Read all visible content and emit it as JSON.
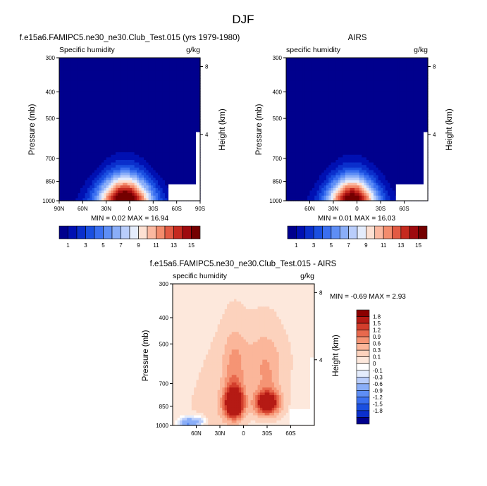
{
  "figure": {
    "title": "DJF"
  },
  "chart_data": [
    {
      "type": "heatmap",
      "panel": "model",
      "title": "f.e15a6.FAMIPC5.ne30_ne30.Club_Test.015 (yrs 1979-1980)",
      "left_subtitle": "Specific humidity",
      "right_subtitle": "g/kg",
      "ylabel": "Pressure (mb)",
      "ylabel_right": "Height (km)",
      "x_tick_labels": [
        "90N",
        "60N",
        "30N",
        "0",
        "30S",
        "60S",
        "90S"
      ],
      "x_ticks": [
        90,
        60,
        30,
        0,
        -30,
        -60,
        -90
      ],
      "xlim": [
        90,
        -90
      ],
      "y_tick_labels": [
        "300",
        "400",
        "500",
        "700",
        "850",
        "1000"
      ],
      "y_ticks": [
        300,
        400,
        500,
        700,
        850,
        1000
      ],
      "ylim": [
        300,
        1000
      ],
      "y_scale": "log",
      "height_ticks": [
        "8",
        "4"
      ],
      "min_max_text": "MIN =  0.02  MAX =  16.94",
      "min": 0.02,
      "max": 16.94,
      "colorbar": {
        "labels": [
          "1",
          "3",
          "5",
          "7",
          "9",
          "11",
          "13",
          "15"
        ],
        "levels": [
          1,
          2,
          3,
          4,
          5,
          6,
          7,
          8,
          9,
          10,
          11,
          12,
          13,
          14,
          15
        ],
        "colors": [
          "#00008d",
          "#0010b2",
          "#0a2fcc",
          "#1a4fe0",
          "#3a6ff0",
          "#5e8ef5",
          "#8aaef8",
          "#b9cdfb",
          "#e4ecfc",
          "#fde0d2",
          "#fbb8a0",
          "#f38c6d",
          "#e25a43",
          "#c52a1f",
          "#9e0a0e",
          "#740000"
        ]
      },
      "field": {
        "amplitude": 17,
        "center_lat": 6,
        "lat_width": 25,
        "scale_height_mb": 140
      }
    },
    {
      "type": "heatmap",
      "panel": "obs",
      "title": "AIRS",
      "left_subtitle": "specific humidity",
      "right_subtitle": "g/kg",
      "ylabel": "Pressure (mb)",
      "ylabel_right": "Height (km)",
      "x_tick_labels": [
        "60N",
        "30N",
        "0",
        "30S",
        "60S"
      ],
      "x_ticks": [
        60,
        30,
        0,
        -30,
        -60
      ],
      "xlim": [
        90,
        -90
      ],
      "y_tick_labels": [
        "300",
        "400",
        "500",
        "700",
        "850",
        "1000"
      ],
      "y_ticks": [
        300,
        400,
        500,
        700,
        850,
        1000
      ],
      "ylim": [
        300,
        1000
      ],
      "y_scale": "log",
      "height_ticks": [
        "8",
        "4"
      ],
      "min_max_text": "MIN =  0.01  MAX =  16.03",
      "min": 0.01,
      "max": 16.03,
      "colorbar": {
        "labels": [
          "1",
          "3",
          "5",
          "7",
          "9",
          "11",
          "13",
          "15"
        ],
        "levels": [
          1,
          2,
          3,
          4,
          5,
          6,
          7,
          8,
          9,
          10,
          11,
          12,
          13,
          14,
          15
        ],
        "colors": [
          "#00008d",
          "#0010b2",
          "#0a2fcc",
          "#1a4fe0",
          "#3a6ff0",
          "#5e8ef5",
          "#8aaef8",
          "#b9cdfb",
          "#e4ecfc",
          "#fde0d2",
          "#fbb8a0",
          "#f38c6d",
          "#e25a43",
          "#c52a1f",
          "#9e0a0e",
          "#740000"
        ]
      },
      "field": {
        "amplitude": 16.2,
        "center_lat": 6,
        "lat_width": 23,
        "scale_height_mb": 135
      }
    },
    {
      "type": "heatmap",
      "panel": "difference",
      "title": "f.e15a6.FAMIPC5.ne30_ne30.Club_Test.015 - AIRS",
      "left_subtitle": "specific humidity",
      "right_subtitle": "g/kg",
      "ylabel": "Pressure (mb)",
      "ylabel_right": "Height (km)",
      "x_tick_labels": [
        "60N",
        "30N",
        "0",
        "30S",
        "60S"
      ],
      "x_ticks": [
        60,
        30,
        0,
        -30,
        -60
      ],
      "xlim": [
        90,
        -90
      ],
      "y_tick_labels": [
        "300",
        "400",
        "500",
        "700",
        "850",
        "1000"
      ],
      "y_ticks": [
        300,
        400,
        500,
        700,
        850,
        1000
      ],
      "ylim": [
        300,
        1000
      ],
      "y_scale": "log",
      "height_ticks": [
        "8",
        "4"
      ],
      "min_max_text": "MIN = -0.69  MAX =  2.93",
      "min": -0.69,
      "max": 2.93,
      "colorbar": {
        "labels": [
          "1.8",
          "1.5",
          "1.2",
          "0.9",
          "0.6",
          "0.3",
          "0.1",
          "0",
          "-0.1",
          "-0.3",
          "-0.6",
          "-0.9",
          "-1.2",
          "-1.5",
          "-1.8"
        ],
        "levels": [
          -1.8,
          -1.5,
          -1.2,
          -0.9,
          -0.6,
          -0.3,
          -0.1,
          0,
          0.1,
          0.3,
          0.6,
          0.9,
          1.2,
          1.5,
          1.8
        ],
        "colors": [
          "#00008d",
          "#0a2fcc",
          "#1a4fe0",
          "#3a6ff0",
          "#5e8ef5",
          "#8aaef8",
          "#b9cdfb",
          "#e4ecfc",
          "#ffffff",
          "#fde8dc",
          "#fcd2bd",
          "#fbb69a",
          "#f59474",
          "#e8694d",
          "#d33e2c",
          "#b51a14",
          "#8b0000"
        ]
      }
    }
  ]
}
